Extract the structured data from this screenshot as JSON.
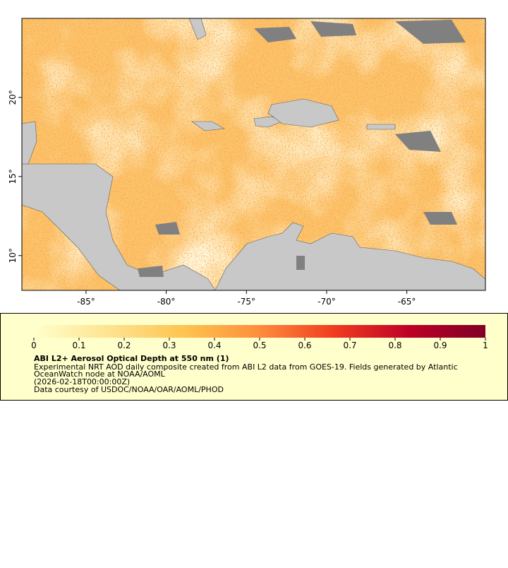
{
  "map": {
    "xlim": [
      -89,
      -60.1
    ],
    "ylim": [
      7.8,
      25
    ],
    "xticks": [
      {
        "value": -85,
        "label": "-85°"
      },
      {
        "value": -80,
        "label": "-80°"
      },
      {
        "value": -75,
        "label": "-75°"
      },
      {
        "value": -70,
        "label": "-70°"
      },
      {
        "value": -65,
        "label": "-65°"
      }
    ],
    "yticks": [
      {
        "value": 10,
        "label": "10°"
      },
      {
        "value": 15,
        "label": "15°"
      },
      {
        "value": 20,
        "label": "20°"
      }
    ]
  },
  "colorbar": {
    "range": [
      0,
      1
    ],
    "ticks": [
      0,
      0.1,
      0.2,
      0.3,
      0.4,
      0.5,
      0.6,
      0.7,
      0.8,
      0.9,
      1
    ],
    "colors": [
      "#ffffcc",
      "#fee391",
      "#fec44f",
      "#fd8d3c",
      "#f03b20",
      "#bd0026",
      "#800026"
    ]
  },
  "caption": {
    "title": "ABI L2+ Aerosol Optical Depth at 550 nm (1)",
    "lines": [
      "Experimental NRT AOD daily composite created from ABI L2 data from GOES-19. Fields generated by Atlantic",
      "OceanWatch node at NOAA/AOML",
      "(2026-02-18T00:00:00Z)",
      "Data courtesy of USDOC/NOAA/OAR/AOML/PHOD"
    ]
  }
}
